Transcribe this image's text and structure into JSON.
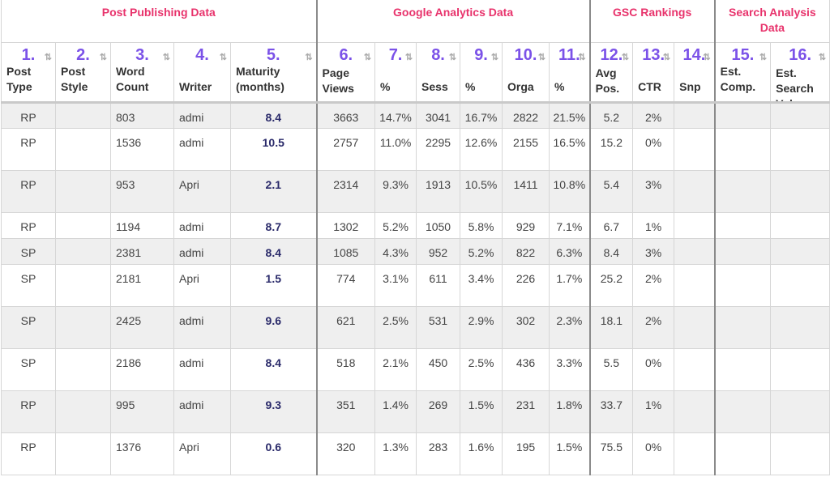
{
  "groups": [
    {
      "label": "Post Publishing Data"
    },
    {
      "label": "Google Analytics Data"
    },
    {
      "label": "GSC Rankings"
    },
    {
      "label": "Search Analysis Data"
    }
  ],
  "columns": [
    {
      "num": "1.",
      "label": "Post Type"
    },
    {
      "num": "2.",
      "label": "Post Style"
    },
    {
      "num": "3.",
      "label": "Word Count"
    },
    {
      "num": "4.",
      "label": "Writer"
    },
    {
      "num": "5.",
      "label": "Maturity (months)"
    },
    {
      "num": "6.",
      "label": "Page Views"
    },
    {
      "num": "7.",
      "label": "%"
    },
    {
      "num": "8.",
      "label": "Sess"
    },
    {
      "num": "9.",
      "label": "%"
    },
    {
      "num": "10.",
      "label": "Orga"
    },
    {
      "num": "11.",
      "label": "%"
    },
    {
      "num": "12.",
      "label": "Avg Pos."
    },
    {
      "num": "13.",
      "label": "CTR"
    },
    {
      "num": "14.",
      "label": "Snp"
    },
    {
      "num": "15.",
      "label": "Est. Comp."
    },
    {
      "num": "16.",
      "label": "Est. Search Vol."
    }
  ],
  "rows": [
    [
      "RP",
      "",
      "803",
      "admi",
      "8.4",
      "3663",
      "14.7%",
      "3041",
      "16.7%",
      "2822",
      "21.5%",
      "5.2",
      "2%",
      "",
      "",
      ""
    ],
    [
      "RP",
      "",
      "1536",
      "admi",
      "10.5",
      "2757",
      "11.0%",
      "2295",
      "12.6%",
      "2155",
      "16.5%",
      "15.2",
      "0%",
      "",
      "",
      ""
    ],
    [
      "RP",
      "",
      "953",
      "Apri",
      "2.1",
      "2314",
      "9.3%",
      "1913",
      "10.5%",
      "1411",
      "10.8%",
      "5.4",
      "3%",
      "",
      "",
      ""
    ],
    [
      "RP",
      "",
      "1194",
      "admi",
      "8.7",
      "1302",
      "5.2%",
      "1050",
      "5.8%",
      "929",
      "7.1%",
      "6.7",
      "1%",
      "",
      "",
      ""
    ],
    [
      "SP",
      "",
      "2381",
      "admi",
      "8.4",
      "1085",
      "4.3%",
      "952",
      "5.2%",
      "822",
      "6.3%",
      "8.4",
      "3%",
      "",
      "",
      ""
    ],
    [
      "SP",
      "",
      "2181",
      "Apri",
      "1.5",
      "774",
      "3.1%",
      "611",
      "3.4%",
      "226",
      "1.7%",
      "25.2",
      "2%",
      "",
      "",
      ""
    ],
    [
      "SP",
      "",
      "2425",
      "admi",
      "9.6",
      "621",
      "2.5%",
      "531",
      "2.9%",
      "302",
      "2.3%",
      "18.1",
      "2%",
      "",
      "",
      ""
    ],
    [
      "SP",
      "",
      "2186",
      "admi",
      "8.4",
      "518",
      "2.1%",
      "450",
      "2.5%",
      "436",
      "3.3%",
      "5.5",
      "0%",
      "",
      "",
      ""
    ],
    [
      "RP",
      "",
      "995",
      "admi",
      "9.3",
      "351",
      "1.4%",
      "269",
      "1.5%",
      "231",
      "1.8%",
      "33.7",
      "1%",
      "",
      "",
      ""
    ],
    [
      "RP",
      "",
      "1376",
      "Apri",
      "0.6",
      "320",
      "1.3%",
      "283",
      "1.6%",
      "195",
      "1.5%",
      "75.5",
      "0%",
      "",
      "",
      ""
    ]
  ]
}
